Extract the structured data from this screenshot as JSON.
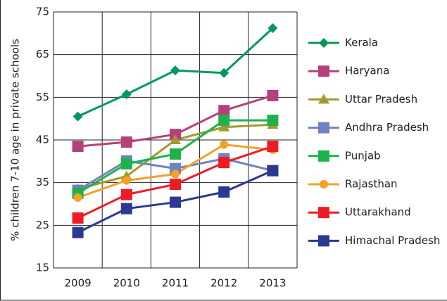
{
  "chart_data": {
    "type": "line",
    "ylabel": "% children 7-10 age in private schools",
    "categories": [
      "2009",
      "2010",
      "2011",
      "2012",
      "2013"
    ],
    "ylim": [
      15,
      75
    ],
    "yticks": [
      15,
      25,
      35,
      45,
      55,
      65,
      75
    ],
    "grid": true,
    "legend": "right",
    "series": [
      {
        "name": "Kerala",
        "color": "#00995a",
        "marker": "diamond",
        "values": [
          50.5,
          55.7,
          61.3,
          60.7,
          71.2
        ]
      },
      {
        "name": "Haryana",
        "color": "#b5407c",
        "marker": "square",
        "values": [
          43.5,
          44.5,
          46.3,
          51.9,
          55.4
        ]
      },
      {
        "name": "Uttar Pradesh",
        "color": "#a39a2b",
        "marker": "triangle",
        "values": [
          33.5,
          36.5,
          45,
          48,
          48.6
        ]
      },
      {
        "name": "Andhra Pradesh",
        "color": "#7281c0",
        "marker": "square",
        "values": [
          33.2,
          40.1,
          38.3,
          40.6,
          37.8
        ]
      },
      {
        "name": "Punjab",
        "color": "#1fb24a",
        "marker": "square",
        "values": [
          32.5,
          39.4,
          41.7,
          49.6,
          49.6
        ]
      },
      {
        "name": "Rajasthan",
        "color": "#f5a028",
        "marker": "circle",
        "values": [
          31.5,
          35.5,
          37,
          43.9,
          42.7
        ]
      },
      {
        "name": "Uttarakhand",
        "color": "#ed1c24",
        "marker": "square",
        "values": [
          26.7,
          32.2,
          34.6,
          39.7,
          43.5
        ]
      },
      {
        "name": "Himachal Pradesh",
        "color": "#2b3990",
        "marker": "square",
        "values": [
          23.3,
          28.9,
          30.4,
          32.8,
          37.8
        ]
      }
    ]
  }
}
